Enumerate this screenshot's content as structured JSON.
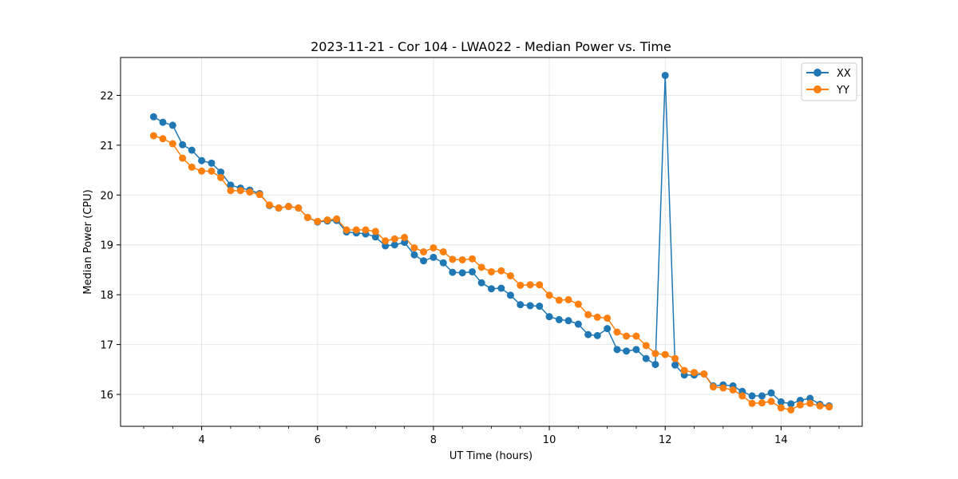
{
  "chart_data": {
    "type": "line",
    "title": "2023-11-21 - Cor 104 - LWA022 - Median Power vs. Time",
    "xlabel": "UT Time (hours)",
    "ylabel": "Median Power (CPU)",
    "xlim": [
      2.6,
      15.4
    ],
    "ylim": [
      15.36,
      22.76
    ],
    "xticks": [
      4,
      6,
      8,
      10,
      12,
      14
    ],
    "xtick_labels": [
      "4",
      "6",
      "8",
      "10",
      "12",
      "14"
    ],
    "yticks": [
      16,
      17,
      18,
      19,
      20,
      21,
      22
    ],
    "ytick_labels": [
      "16",
      "17",
      "18",
      "19",
      "20",
      "21",
      "22"
    ],
    "x_minor_step": 0.5,
    "grid": true,
    "legend_position": "top-right",
    "x": [
      3.17,
      3.33,
      3.5,
      3.67,
      3.83,
      4.0,
      4.17,
      4.33,
      4.5,
      4.67,
      4.83,
      5.0,
      5.17,
      5.33,
      5.5,
      5.67,
      5.83,
      6.0,
      6.17,
      6.33,
      6.5,
      6.67,
      6.83,
      7.0,
      7.17,
      7.33,
      7.5,
      7.67,
      7.83,
      8.0,
      8.17,
      8.33,
      8.5,
      8.67,
      8.83,
      9.0,
      9.17,
      9.33,
      9.5,
      9.67,
      9.83,
      10.0,
      10.17,
      10.33,
      10.5,
      10.67,
      10.83,
      11.0,
      11.17,
      11.33,
      11.5,
      11.67,
      11.83,
      12.0,
      12.17,
      12.33,
      12.5,
      12.67,
      12.83,
      13.0,
      13.17,
      13.33,
      13.5,
      13.67,
      13.83,
      14.0,
      14.17,
      14.33,
      14.5,
      14.67,
      14.83
    ],
    "series": [
      {
        "name": "XX",
        "color": "#1f77b4",
        "values": [
          21.57,
          21.46,
          21.4,
          21.01,
          20.9,
          20.69,
          20.64,
          20.46,
          20.2,
          20.14,
          20.1,
          20.03,
          19.79,
          19.74,
          19.77,
          19.74,
          19.55,
          19.46,
          19.48,
          19.49,
          19.26,
          19.24,
          19.22,
          19.16,
          18.98,
          19.0,
          19.05,
          18.8,
          18.68,
          18.75,
          18.64,
          18.45,
          18.44,
          18.46,
          18.24,
          18.12,
          18.13,
          17.99,
          17.8,
          17.78,
          17.77,
          17.56,
          17.5,
          17.48,
          17.41,
          17.2,
          17.18,
          17.32,
          16.9,
          16.87,
          16.9,
          16.72,
          16.6,
          22.4,
          16.59,
          16.39,
          16.39,
          16.41,
          16.17,
          16.19,
          16.17,
          16.06,
          15.97,
          15.97,
          16.03,
          15.85,
          15.81,
          15.88,
          15.92,
          15.8,
          15.77
        ]
      },
      {
        "name": "YY",
        "color": "#ff7f0e",
        "values": [
          21.19,
          21.13,
          21.03,
          20.74,
          20.56,
          20.48,
          20.48,
          20.35,
          20.09,
          20.09,
          20.06,
          20.01,
          19.8,
          19.74,
          19.77,
          19.74,
          19.55,
          19.47,
          19.5,
          19.52,
          19.3,
          19.3,
          19.3,
          19.27,
          19.08,
          19.12,
          19.15,
          18.94,
          18.86,
          18.94,
          18.86,
          18.71,
          18.7,
          18.72,
          18.55,
          18.46,
          18.48,
          18.38,
          18.19,
          18.2,
          18.2,
          17.99,
          17.89,
          17.9,
          17.81,
          17.6,
          17.55,
          17.53,
          17.25,
          17.17,
          17.17,
          16.98,
          16.82,
          16.8,
          16.72,
          16.48,
          16.44,
          16.41,
          16.15,
          16.13,
          16.09,
          15.97,
          15.82,
          15.83,
          15.86,
          15.73,
          15.69,
          15.79,
          15.82,
          15.77,
          15.75
        ]
      }
    ]
  }
}
